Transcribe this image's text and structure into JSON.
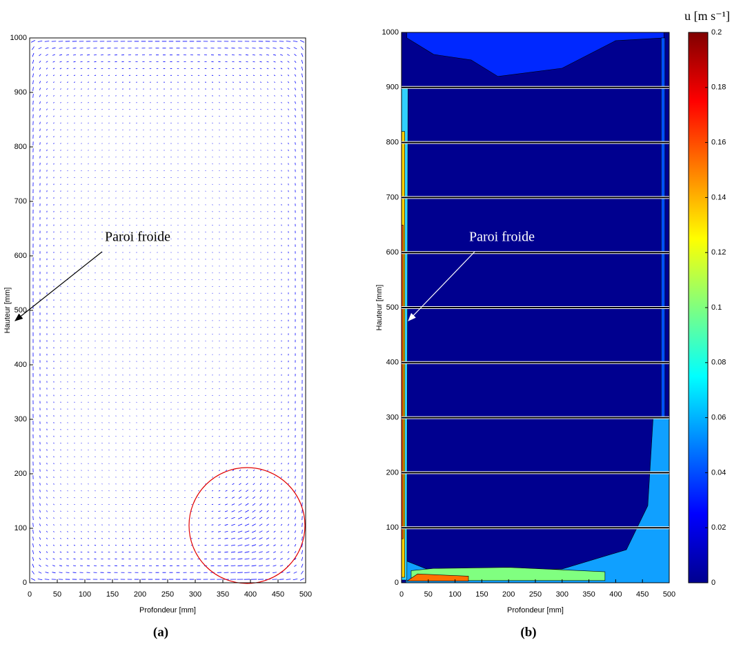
{
  "chart_data": [
    {
      "type": "quiver",
      "panel_label": "(a)",
      "xlabel": "Profondeur [mm]",
      "ylabel": "Hauteur [mm]",
      "xlim": [
        0,
        500
      ],
      "ylim": [
        0,
        1000
      ],
      "xticks": [
        0,
        50,
        100,
        150,
        200,
        250,
        300,
        350,
        400,
        450,
        500
      ],
      "yticks": [
        0,
        100,
        200,
        300,
        400,
        500,
        600,
        700,
        800,
        900,
        1000
      ],
      "color": "#0000ff",
      "annotation": "Paroi froide"
    },
    {
      "type": "contour",
      "panel_label": "(b)",
      "xlabel": "Profondeur [mm]",
      "ylabel": "Hauteur [mm]",
      "xlim": [
        0,
        500
      ],
      "ylim": [
        0,
        1000
      ],
      "xticks": [
        0,
        50,
        100,
        150,
        200,
        250,
        300,
        350,
        400,
        450,
        500
      ],
      "yticks": [
        0,
        100,
        200,
        300,
        400,
        500,
        600,
        700,
        800,
        900,
        1000
      ],
      "grid": true,
      "annotation": "Paroi froide",
      "colormap": "jet",
      "colorbar_label": "u [m s⁻¹]",
      "zlim": [
        0,
        0.2
      ],
      "zticks": [
        0,
        0.02,
        0.04,
        0.06,
        0.08,
        0.1,
        0.12,
        0.14,
        0.16,
        0.18,
        0.2
      ]
    }
  ]
}
